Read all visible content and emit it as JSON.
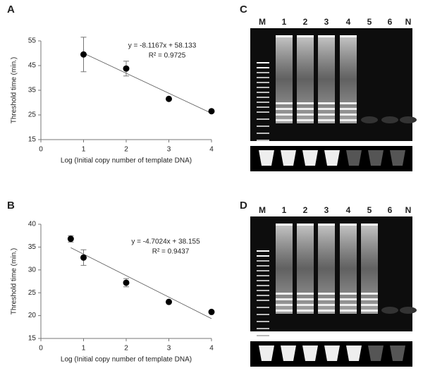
{
  "panel_labels": [
    "A",
    "B",
    "C",
    "D"
  ],
  "gels": [
    {
      "lanes": [
        "M",
        "1",
        "2",
        "3",
        "4",
        "5",
        "6",
        "N"
      ]
    },
    {
      "lanes": [
        "M",
        "1",
        "2",
        "3",
        "4",
        "5",
        "6",
        "N"
      ]
    }
  ],
  "chart_data": [
    {
      "type": "scatter",
      "x_label": "Log (Initial copy number of template DNA)",
      "y_label": "Threshold time (min.)",
      "x": [
        1,
        2,
        3,
        4
      ],
      "values": [
        49.5,
        43.8,
        31.5,
        26.5
      ],
      "errors": [
        7,
        3,
        null,
        null
      ],
      "color": "#000000",
      "xlim": [
        0,
        4
      ],
      "xticks": [
        0,
        1,
        2,
        3,
        4
      ],
      "ylim": [
        15,
        55
      ],
      "yticks": [
        15,
        25,
        35,
        45,
        55
      ],
      "trendline": {
        "slope": -8.1167,
        "intercept": 58.133
      },
      "equation": "y = -8.1167x + 58.133",
      "r_squared": "R² = 0.9725"
    },
    {
      "type": "scatter",
      "x_label": "Log (Initial copy number of template DNA)",
      "y_label": "Threshold time (min.)",
      "x": [
        0.7,
        1,
        2,
        3,
        4
      ],
      "values": [
        36.8,
        32.7,
        27.2,
        23,
        20.8
      ],
      "errors": [
        0.7,
        1.7,
        0.9,
        null,
        null
      ],
      "color": "#000000",
      "xlim": [
        0,
        4
      ],
      "xticks": [
        0,
        1,
        2,
        3,
        4
      ],
      "ylim": [
        15,
        40
      ],
      "yticks": [
        15,
        20,
        25,
        30,
        35,
        40
      ],
      "trendline": {
        "slope": -4.7024,
        "intercept": 38.155
      },
      "equation": "y = -4.7024x + 38.155",
      "r_squared": "R² = 0.9437"
    }
  ]
}
